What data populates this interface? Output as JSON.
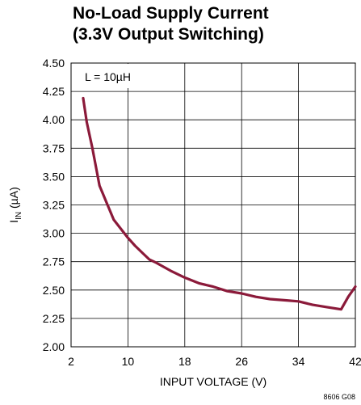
{
  "chart_data": {
    "type": "line",
    "title_line1": "No-Load Supply Current",
    "title_line2": "(3.3V Output Switching)",
    "xlabel": "INPUT VOLTAGE (V)",
    "ylabel_main": "I",
    "ylabel_sub": "IN",
    "ylabel_unit": " (µA)",
    "xlim": [
      2,
      42
    ],
    "ylim": [
      2.0,
      4.5
    ],
    "x_ticks": [
      2,
      10,
      18,
      26,
      34,
      42
    ],
    "x_tick_labels": [
      "2",
      "10",
      "18",
      "26",
      "34",
      "42"
    ],
    "y_ticks": [
      2.0,
      2.25,
      2.5,
      2.75,
      3.0,
      3.25,
      3.5,
      3.75,
      4.0,
      4.25,
      4.5
    ],
    "y_tick_labels": [
      "2.00",
      "2.25",
      "2.50",
      "2.75",
      "3.00",
      "3.25",
      "3.50",
      "3.75",
      "4.00",
      "4.25",
      "4.50"
    ],
    "grid": true,
    "annotation": "L = 10µH",
    "figure_id": "8606 G08",
    "series": [
      {
        "color": "#8b1a3a",
        "x": [
          3.7,
          4.2,
          5,
          6,
          7,
          8,
          9,
          10,
          11,
          12,
          13,
          14,
          16,
          18,
          20,
          22,
          24,
          26,
          28,
          30,
          32,
          34,
          36,
          38,
          39,
          40,
          41,
          42
        ],
        "y": [
          4.19,
          3.98,
          3.75,
          3.42,
          3.27,
          3.12,
          3.04,
          2.96,
          2.89,
          2.83,
          2.77,
          2.74,
          2.67,
          2.61,
          2.56,
          2.53,
          2.49,
          2.47,
          2.44,
          2.42,
          2.41,
          2.4,
          2.37,
          2.35,
          2.34,
          2.33,
          2.44,
          2.53
        ]
      }
    ]
  }
}
